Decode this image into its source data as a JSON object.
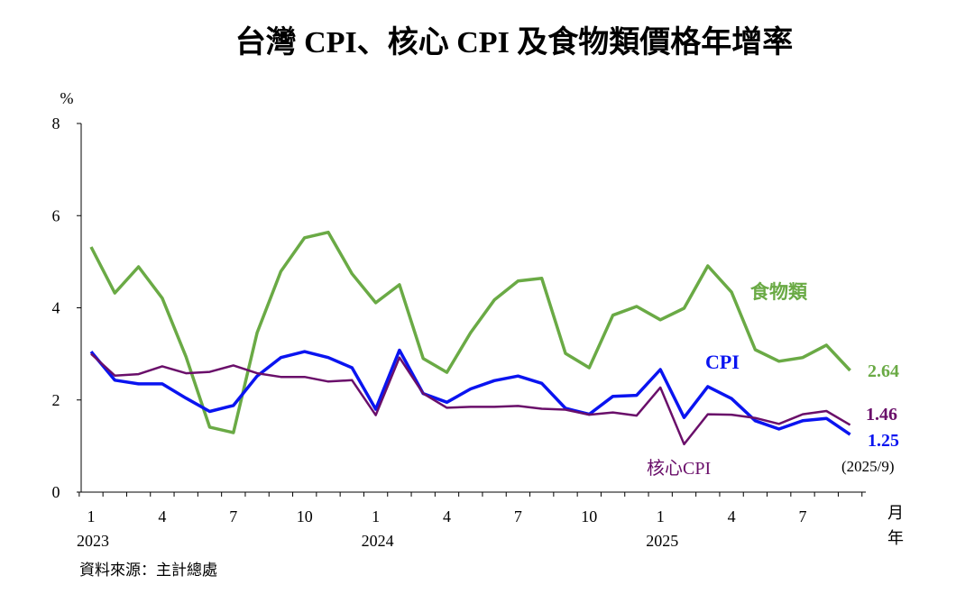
{
  "chart_data": {
    "type": "line",
    "title": "台灣 CPI、核心 CPI 及食物類價格年增率",
    "ylabel": "%",
    "xlabel_month": "月",
    "xlabel_year": "年",
    "ylim": [
      0,
      8
    ],
    "yticks": [
      0,
      2,
      4,
      6,
      8
    ],
    "x_tick_labels": [
      "1",
      "4",
      "7",
      "10",
      "1",
      "4",
      "7",
      "10",
      "1",
      "4",
      "7"
    ],
    "x_tick_index": [
      0,
      3,
      6,
      9,
      12,
      15,
      18,
      21,
      24,
      27,
      30
    ],
    "year_labels": [
      {
        "label": "2023",
        "index": 0
      },
      {
        "label": "2024",
        "index": 12
      },
      {
        "label": "2025",
        "index": 24
      }
    ],
    "source": "資料來源：主計總處",
    "latest_period": "(2025/9)",
    "series": [
      {
        "name": "食物類",
        "color": "#6aaa45",
        "end_label": "2.64",
        "values": [
          5.32,
          4.32,
          4.89,
          4.21,
          2.94,
          1.41,
          1.29,
          3.46,
          4.79,
          5.52,
          5.64,
          4.74,
          4.11,
          4.5,
          2.9,
          2.6,
          3.46,
          4.17,
          4.58,
          4.64,
          3.01,
          2.7,
          3.84,
          4.03,
          3.74,
          3.99,
          4.91,
          4.34,
          3.09,
          2.84,
          2.92,
          3.19,
          2.64
        ]
      },
      {
        "name": "CPI",
        "color": "#0a14f0",
        "end_label": "1.25",
        "values": [
          3.05,
          2.43,
          2.35,
          2.35,
          2.04,
          1.75,
          1.88,
          2.52,
          2.92,
          3.05,
          2.92,
          2.7,
          1.8,
          3.08,
          2.14,
          1.95,
          2.24,
          2.42,
          2.52,
          2.36,
          1.82,
          1.69,
          2.08,
          2.1,
          2.66,
          1.62,
          2.29,
          2.03,
          1.55,
          1.37,
          1.55,
          1.6,
          1.25
        ]
      },
      {
        "name": "核心CPI",
        "color": "#6a0f6a",
        "end_label": "1.46",
        "values": [
          3.0,
          2.53,
          2.56,
          2.73,
          2.58,
          2.61,
          2.75,
          2.58,
          2.5,
          2.5,
          2.4,
          2.43,
          1.67,
          2.92,
          2.14,
          1.83,
          1.85,
          1.85,
          1.87,
          1.81,
          1.79,
          1.68,
          1.73,
          1.66,
          2.27,
          1.04,
          1.69,
          1.68,
          1.61,
          1.48,
          1.69,
          1.76,
          1.46
        ]
      }
    ]
  }
}
